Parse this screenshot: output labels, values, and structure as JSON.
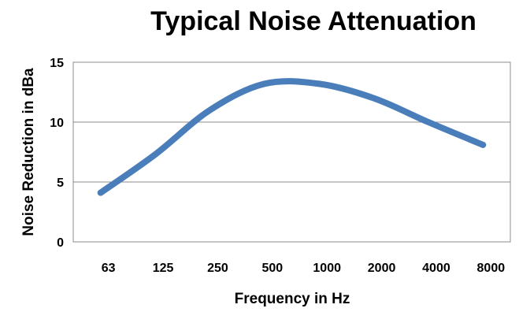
{
  "chart_data": {
    "type": "line",
    "title": "Typical Noise Attenuation",
    "xlabel": "Frequency in Hz",
    "ylabel": "Noise Reduction in dBa",
    "categories": [
      "63",
      "125",
      "250",
      "500",
      "1000",
      "2000",
      "4000",
      "8000"
    ],
    "yticks": [
      0,
      5,
      10,
      15
    ],
    "ylim": [
      0,
      15
    ],
    "grid": true,
    "legend": "none",
    "series": [
      {
        "name": "",
        "color": "#4a7ebb",
        "values": [
          4.1,
          7.3,
          11.0,
          13.2,
          13.2,
          12.0,
          10.0,
          8.1
        ]
      }
    ]
  }
}
